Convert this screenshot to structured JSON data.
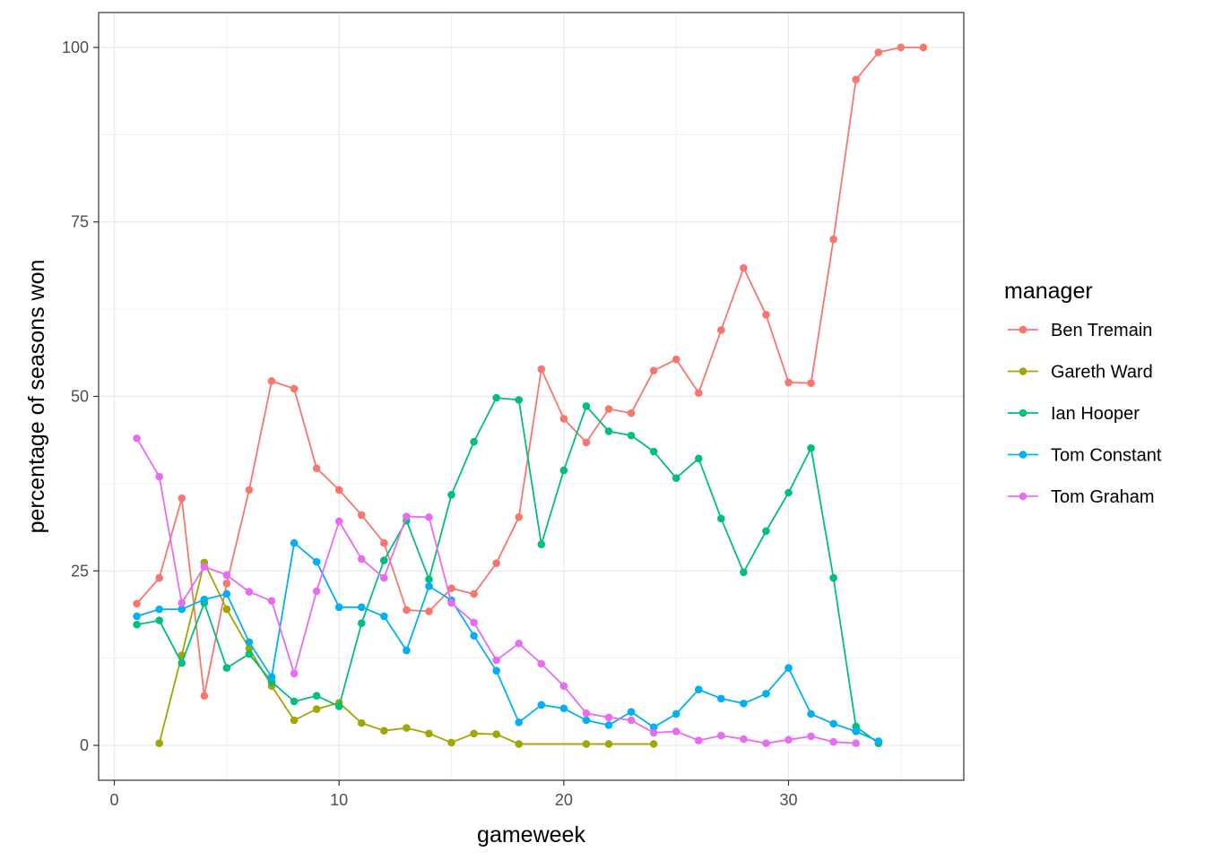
{
  "chart_data": {
    "type": "line",
    "title": "",
    "xlabel": "gameweek",
    "ylabel": "percentage of seasons won",
    "xlim": [
      -0.7,
      37.8
    ],
    "ylim": [
      -5,
      105
    ],
    "x_ticks": [
      0,
      10,
      20,
      30
    ],
    "y_ticks": [
      0,
      25,
      50,
      75,
      100
    ],
    "grid": true,
    "legend": {
      "title": "manager",
      "position": "right"
    },
    "series": [
      {
        "name": "Ben Tremain",
        "color": "#F8766D",
        "x": [
          1,
          2,
          3,
          4,
          5,
          6,
          7,
          8,
          9,
          10,
          11,
          12,
          13,
          14,
          15,
          16,
          17,
          18,
          19,
          20,
          21,
          22,
          23,
          24,
          25,
          26,
          27,
          28,
          29,
          30,
          31,
          32,
          33,
          34,
          35,
          36
        ],
        "y": [
          20.3,
          24.0,
          35.4,
          7.1,
          23.2,
          36.6,
          52.2,
          51.1,
          39.7,
          36.6,
          33.0,
          29.0,
          19.4,
          19.2,
          22.5,
          21.7,
          26.1,
          32.7,
          53.9,
          46.8,
          43.4,
          48.2,
          47.6,
          53.7,
          55.3,
          50.5,
          59.5,
          68.4,
          61.7,
          52.0,
          51.9,
          72.5,
          95.4,
          99.3,
          100,
          100
        ]
      },
      {
        "name": "Gareth Ward",
        "color": "#A3A500",
        "x": [
          2,
          3,
          4,
          5,
          6,
          7,
          8,
          9,
          10,
          11,
          12,
          13,
          14,
          15,
          16,
          17,
          18,
          21,
          22,
          24
        ],
        "y": [
          0.3,
          12.9,
          26.2,
          19.5,
          13.9,
          8.5,
          3.6,
          5.2,
          6.1,
          3.2,
          2.1,
          2.5,
          1.7,
          0.4,
          1.7,
          1.6,
          0.2,
          0.2,
          0.2,
          0.2
        ]
      },
      {
        "name": "Ian Hooper",
        "color": "#00BF7D",
        "x": [
          1,
          2,
          3,
          4,
          5,
          6,
          7,
          8,
          9,
          10,
          11,
          12,
          13,
          14,
          15,
          16,
          17,
          18,
          19,
          20,
          21,
          22,
          23,
          24,
          25,
          26,
          27,
          28,
          29,
          30,
          31,
          32,
          33,
          34
        ],
        "y": [
          17.3,
          17.9,
          11.8,
          20.4,
          11.1,
          13.1,
          9.1,
          6.3,
          7.1,
          5.6,
          17.5,
          26.5,
          32.2,
          23.8,
          35.9,
          43.5,
          49.8,
          49.5,
          28.8,
          39.4,
          48.6,
          45.0,
          44.4,
          42.1,
          38.3,
          41.1,
          32.5,
          24.8,
          30.7,
          36.2,
          42.6,
          24.0,
          2.7,
          0.3
        ]
      },
      {
        "name": "Tom Constant",
        "color": "#00B0F6",
        "x": [
          1,
          2,
          3,
          4,
          5,
          6,
          7,
          8,
          9,
          10,
          11,
          12,
          13,
          14,
          15,
          16,
          17,
          18,
          19,
          20,
          21,
          22,
          23,
          24,
          25,
          26,
          27,
          28,
          29,
          30,
          31,
          32,
          33,
          34
        ],
        "y": [
          18.5,
          19.5,
          19.5,
          20.9,
          21.7,
          14.8,
          9.8,
          29.0,
          26.3,
          19.8,
          19.8,
          18.5,
          13.6,
          22.8,
          20.8,
          15.7,
          10.7,
          3.3,
          5.8,
          5.3,
          3.6,
          2.9,
          4.8,
          2.6,
          4.5,
          8.0,
          6.7,
          6.0,
          7.4,
          11.1,
          4.5,
          3.1,
          2.0,
          0.6
        ]
      },
      {
        "name": "Tom Graham",
        "color": "#E76BF3",
        "x": [
          1,
          2,
          3,
          4,
          5,
          6,
          7,
          8,
          9,
          10,
          11,
          12,
          13,
          14,
          15,
          16,
          17,
          18,
          19,
          20,
          21,
          22,
          23,
          24,
          25,
          26,
          27,
          28,
          29,
          30,
          31,
          32,
          33
        ],
        "y": [
          44.0,
          38.5,
          20.4,
          25.6,
          24.4,
          22.0,
          20.7,
          10.3,
          22.1,
          32.1,
          26.7,
          24.0,
          32.8,
          32.7,
          20.4,
          17.6,
          12.2,
          14.6,
          11.7,
          8.5,
          4.6,
          4.0,
          3.6,
          1.8,
          2.0,
          0.7,
          1.4,
          0.9,
          0.3,
          0.8,
          1.3,
          0.5,
          0.3
        ]
      }
    ]
  }
}
